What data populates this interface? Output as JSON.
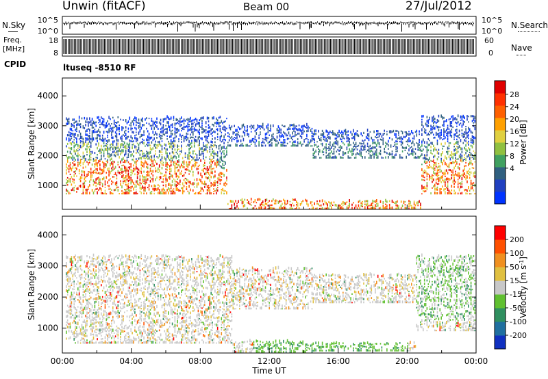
{
  "header": {
    "station": "Unwin (fitACF)",
    "beam": "Beam 00",
    "date": "27/Jul/2012"
  },
  "panels": {
    "nsky": {
      "label": "N.Sky",
      "left_ticks": [
        "10^5",
        "10^0"
      ],
      "right_ticks": [
        "10^5",
        "10^0"
      ],
      "right_label": "N.Search"
    },
    "freq": {
      "label_1": "Freq.",
      "label_2": "[MHz]",
      "left_ticks": [
        "18",
        "8"
      ],
      "right_ticks": [
        "60",
        "0"
      ],
      "right_label": "Nave"
    },
    "cpid": {
      "label": "CPID",
      "text": "ltuseq -8510 RF"
    }
  },
  "chart_data": [
    {
      "type": "heatmap",
      "name": "power",
      "ylabel": "Slant Range [km]",
      "yticks": [
        "4000",
        "3000",
        "2000",
        "1000"
      ],
      "ytick_values": [
        4000,
        3000,
        2000,
        1000
      ],
      "ylim": [
        200,
        4600
      ],
      "xlim": [
        0,
        24
      ],
      "xlabel": "",
      "colorbar": {
        "label": "Power [dB]",
        "ticks": [
          "28",
          "24",
          "20",
          "16",
          "12",
          "8",
          "4"
        ],
        "colors": [
          "#0033ff",
          "#2040c0",
          "#306080",
          "#40a060",
          "#90c040",
          "#e0d040",
          "#ffa000",
          "#ff6000",
          "#ff3000",
          "#e00000"
        ]
      }
    },
    {
      "type": "heatmap",
      "name": "velocity",
      "ylabel": "Slant Range [km]",
      "yticks": [
        "4000",
        "3000",
        "2000",
        "1000"
      ],
      "ytick_values": [
        4000,
        3000,
        2000,
        1000
      ],
      "ylim": [
        200,
        4600
      ],
      "xlim": [
        0,
        24
      ],
      "xlabel": "Time UT",
      "xticks": [
        "00:00",
        "04:00",
        "08:00",
        "12:00",
        "16:00",
        "20:00",
        "00:00"
      ],
      "xtick_values": [
        0,
        4,
        8,
        12,
        16,
        20,
        24
      ],
      "colorbar": {
        "label": "Velocity [m s",
        "label_sup": "-1",
        "label_end": "]",
        "ticks": [
          "200",
          "100",
          "50",
          "15",
          "-15",
          "-50",
          "-100",
          "-200"
        ],
        "colors": [
          "#1030c0",
          "#2070a0",
          "#309060",
          "#60c030",
          "#c8c8c8",
          "#e0c040",
          "#f09020",
          "#ff5000",
          "#ff0000"
        ]
      }
    }
  ]
}
